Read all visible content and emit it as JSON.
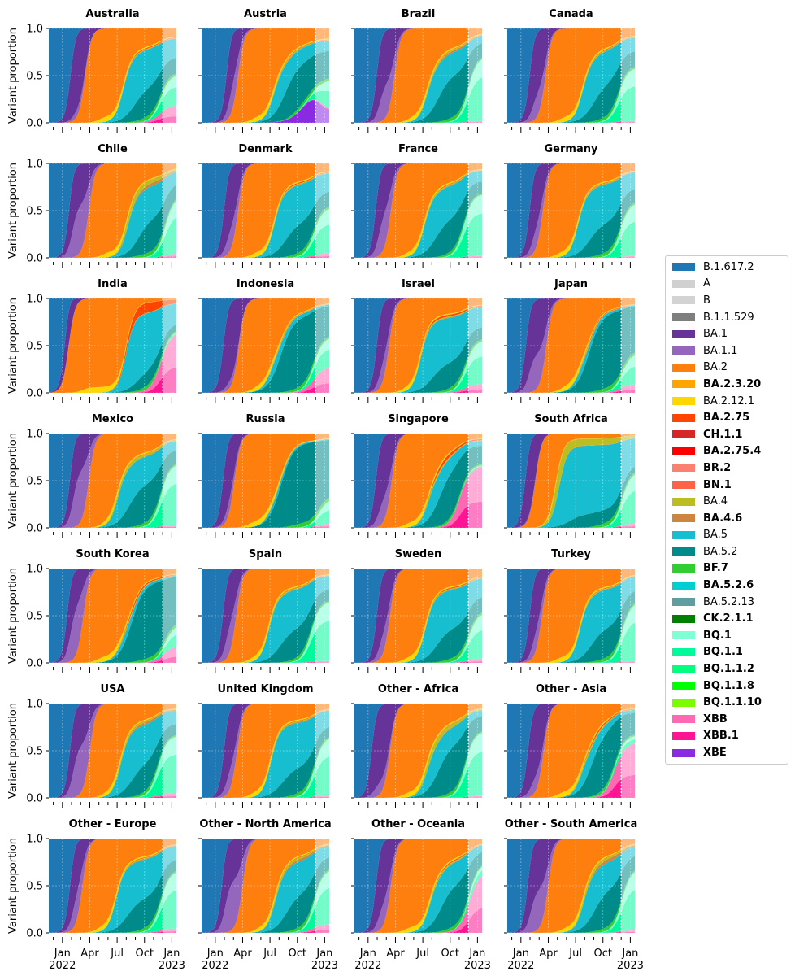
{
  "chart_data": {
    "type": "area",
    "ylabel": "Variant proportion",
    "ylim": [
      0,
      1
    ],
    "yticks": [
      0.0,
      0.5,
      1.0
    ],
    "ytick_labels": [
      "0.0",
      "0.5",
      "1.0"
    ],
    "xtick_labels": [
      "Jan\n2022",
      "Apr",
      "Jul",
      "Oct",
      "Jan\n2023"
    ],
    "grid": true,
    "legend_position": "right",
    "series": [
      {
        "name": "B.1.617.2",
        "color": "#1f77b4",
        "bold": false
      },
      {
        "name": "A",
        "color": "#d0d0d0",
        "bold": false
      },
      {
        "name": "B",
        "color": "#d3d3d3",
        "bold": false
      },
      {
        "name": "B.1.1.529",
        "color": "#7f7f7f",
        "bold": false
      },
      {
        "name": "BA.1",
        "color": "#663399",
        "bold": false
      },
      {
        "name": "BA.1.1",
        "color": "#9467bd",
        "bold": false
      },
      {
        "name": "BA.2",
        "color": "#ff7f0e",
        "bold": false
      },
      {
        "name": "BA.2.3.20",
        "color": "#ffa500",
        "bold": true
      },
      {
        "name": "BA.2.12.1",
        "color": "#ffd700",
        "bold": false
      },
      {
        "name": "BA.2.75",
        "color": "#ff4500",
        "bold": true
      },
      {
        "name": "CH.1.1",
        "color": "#d62728",
        "bold": true
      },
      {
        "name": "BA.2.75.4",
        "color": "#ff0000",
        "bold": true
      },
      {
        "name": "BR.2",
        "color": "#fa8072",
        "bold": true
      },
      {
        "name": "BN.1",
        "color": "#ff6347",
        "bold": true
      },
      {
        "name": "BA.4",
        "color": "#bcbd22",
        "bold": false
      },
      {
        "name": "BA.4.6",
        "color": "#cd853f",
        "bold": true
      },
      {
        "name": "BA.5",
        "color": "#17becf",
        "bold": false
      },
      {
        "name": "BA.5.2",
        "color": "#008b8b",
        "bold": false
      },
      {
        "name": "BF.7",
        "color": "#32cd32",
        "bold": true
      },
      {
        "name": "BA.5.2.6",
        "color": "#00ced1",
        "bold": true
      },
      {
        "name": "BA.5.2.13",
        "color": "#5f9ea0",
        "bold": false
      },
      {
        "name": "CK.2.1.1",
        "color": "#008000",
        "bold": true
      },
      {
        "name": "BQ.1",
        "color": "#7fffd4",
        "bold": true
      },
      {
        "name": "BQ.1.1",
        "color": "#00fa9a",
        "bold": true
      },
      {
        "name": "BQ.1.1.2",
        "color": "#00ff7f",
        "bold": true
      },
      {
        "name": "BQ.1.1.8",
        "color": "#00ff00",
        "bold": true
      },
      {
        "name": "BQ.1.1.10",
        "color": "#7cfc00",
        "bold": true
      },
      {
        "name": "XBB",
        "color": "#ff69b4",
        "bold": true
      },
      {
        "name": "XBB.1",
        "color": "#ff1493",
        "bold": true
      },
      {
        "name": "XBE",
        "color": "#8a2be2",
        "bold": true
      }
    ],
    "panels": [
      {
        "title": "Australia",
        "ba1": 0.9,
        "ba11": 0.1,
        "ba2": 2.5,
        "ba5": 6.7,
        "ba52": 0.35,
        "ba4": 0.03,
        "ba46": 0.03,
        "ba275": 0.05,
        "bq1": 0.45,
        "xbb": 0.2,
        "bq_start": 10.3
      },
      {
        "title": "Austria",
        "ba1": 1.3,
        "ba11": 0.4,
        "ba2": 2.5,
        "ba5": 6.4,
        "ba52": 0.55,
        "ba4": 0.05,
        "ba46": 0.03,
        "ba275": 0.03,
        "bq1": 0.4,
        "xbb": 0.03,
        "xbe": 0.33,
        "bq_start": 10.6
      },
      {
        "title": "Brazil",
        "ba1": 1.0,
        "ba11": 0.4,
        "ba2": 2.9,
        "ba5": 6.5,
        "ba52": 0.5,
        "ba4": 0.06,
        "ba46": 0.08,
        "ba275": 0.02,
        "bq1": 0.9,
        "xbb": 0.02,
        "bq_start": 10.5
      },
      {
        "title": "Canada",
        "ba1": 1.0,
        "ba11": 0.3,
        "ba2": 2.7,
        "ba5": 6.8,
        "ba52": 0.4,
        "ba4": 0.04,
        "ba46": 0.03,
        "ba275": 0.03,
        "bq1": 0.7,
        "xbb": 0.02,
        "bq_start": 10.2
      },
      {
        "title": "Chile",
        "ba1": 0.8,
        "ba11": 0.55,
        "ba2": 2.9,
        "ba5": 7.2,
        "ba52": 0.4,
        "ba4": 0.18,
        "ba46": 0.15,
        "ba275": 0.02,
        "bq1": 0.8,
        "xbb": 0.05,
        "bq_start": 10.8
      },
      {
        "title": "Denmark",
        "ba1": 1.0,
        "ba11": 0.3,
        "ba2": 2.5,
        "ba5": 6.5,
        "ba52": 0.35,
        "ba4": 0.04,
        "ba46": 0.03,
        "ba275": 0.05,
        "bq1": 0.6,
        "xbb": 0.05,
        "bq_start": 10.3
      },
      {
        "title": "France",
        "ba1": 0.9,
        "ba11": 0.45,
        "ba2": 2.5,
        "ba5": 6.2,
        "ba52": 0.4,
        "ba4": 0.05,
        "ba46": 0.03,
        "ba275": 0.03,
        "bq1": 0.85,
        "xbb": 0.02,
        "bq_start": 10.0
      },
      {
        "title": "Germany",
        "ba1": 1.0,
        "ba11": 0.3,
        "ba2": 2.4,
        "ba5": 6.3,
        "ba52": 0.35,
        "ba4": 0.04,
        "ba46": 0.03,
        "ba275": 0.03,
        "bq1": 0.7,
        "xbb": 0.02,
        "bq_start": 10.4
      },
      {
        "title": "India",
        "ba1": 0.4,
        "ba11": 0.05,
        "ba2": 0.7,
        "ba5": 7.0,
        "ba52": 0.2,
        "ba4": 0.02,
        "ba46": 0.02,
        "ba275": 0.75,
        "bq1": 0.05,
        "xbb": 0.8,
        "bq_start": 10.5
      },
      {
        "title": "Indonesia",
        "ba1": 0.9,
        "ba11": 0.1,
        "ba2": 2.6,
        "ba5": 6.0,
        "ba52": 0.8,
        "ba4": 0.03,
        "ba46": 0.02,
        "ba275": 0.03,
        "bq1": 0.5,
        "xbb": 0.3,
        "bq_start": 10.4
      },
      {
        "title": "Israel",
        "ba1": 1.0,
        "ba11": 0.3,
        "ba2": 2.3,
        "ba5": 5.8,
        "ba52": 0.3,
        "ba4": 0.05,
        "ba46": 0.03,
        "ba275": 0.1,
        "bq1": 0.6,
        "xbb": 0.1,
        "bq_start": 10.2
      },
      {
        "title": "Japan",
        "ba1": 0.6,
        "ba11": 0.4,
        "ba2": 2.8,
        "ba5": 6.3,
        "ba52": 0.85,
        "ba4": 0.03,
        "ba46": 0.02,
        "ba275": 0.05,
        "bq1": 0.4,
        "xbb": 0.1,
        "bq_start": 10.6
      },
      {
        "title": "Mexico",
        "ba1": 0.9,
        "ba11": 0.6,
        "ba2": 2.9,
        "ba5": 6.1,
        "ba52": 0.45,
        "ba4": 0.1,
        "ba46": 0.03,
        "ba275": 0.02,
        "bq1": 0.85,
        "xbb": 0.03,
        "bq_start": 10.3
      },
      {
        "title": "Russia",
        "ba1": 0.9,
        "ba11": 0.2,
        "ba2": 2.1,
        "ba5": 6.0,
        "ba52": 0.9,
        "ba4": 0.02,
        "ba46": 0.02,
        "ba275": 0.02,
        "bq1": 0.3,
        "xbb": 0.05,
        "bq_start": 10.8
      },
      {
        "title": "Singapore",
        "ba1": 0.9,
        "ba11": 0.3,
        "ba2": 2.6,
        "ba5": 6.6,
        "ba52": 0.6,
        "ba4": 0.05,
        "ba46": 0.03,
        "ba275": 0.15,
        "bq1": 0.05,
        "xbb": 0.8,
        "bq_start": 9.8
      },
      {
        "title": "South Africa",
        "ba1": 0.5,
        "ba11": 0.05,
        "ba2": 1.6,
        "ba5": 4.2,
        "ba52": 0.15,
        "ba4": 0.55,
        "ba46": 0.03,
        "ba275": 0.02,
        "bq1": 0.7,
        "xbb": 0.05,
        "bq_start": 10.6
      },
      {
        "title": "South Korea",
        "ba1": 0.6,
        "ba11": 0.6,
        "ba2": 2.3,
        "ba5": 6.4,
        "ba52": 0.85,
        "ba4": 0.03,
        "ba46": 0.03,
        "ba275": 0.1,
        "bq1": 0.3,
        "xbb": 0.2,
        "bq_start": 10.8
      },
      {
        "title": "Spain",
        "ba1": 0.9,
        "ba11": 0.4,
        "ba2": 2.3,
        "ba5": 5.9,
        "ba52": 0.35,
        "ba4": 0.05,
        "ba46": 0.03,
        "ba275": 0.03,
        "bq1": 0.8,
        "xbb": 0.02,
        "bq_start": 10.0
      },
      {
        "title": "Sweden",
        "ba1": 1.0,
        "ba11": 0.3,
        "ba2": 2.4,
        "ba5": 6.3,
        "ba52": 0.35,
        "ba4": 0.04,
        "ba46": 0.03,
        "ba275": 0.05,
        "bq1": 0.6,
        "xbb": 0.05,
        "bq_start": 10.5
      },
      {
        "title": "Turkey",
        "ba1": 1.0,
        "ba11": 0.3,
        "ba2": 2.3,
        "ba5": 6.5,
        "ba52": 0.35,
        "ba4": 0.04,
        "ba46": 0.03,
        "ba275": 0.03,
        "bq1": 0.8,
        "xbb": 0.02,
        "bq_start": 10.6
      },
      {
        "title": "USA",
        "ba1": 0.9,
        "ba11": 0.55,
        "ba2": 3.0,
        "ba5": 6.4,
        "ba52": 0.35,
        "ba4": 0.08,
        "ba46": 0.12,
        "ba275": 0.02,
        "bq1": 0.8,
        "xbb": 0.05,
        "bq_start": 10.0
      },
      {
        "title": "United Kingdom",
        "ba1": 1.0,
        "ba11": 0.3,
        "ba2": 2.4,
        "ba5": 6.1,
        "ba52": 0.3,
        "ba4": 0.05,
        "ba46": 0.05,
        "ba275": 0.03,
        "bq1": 0.8,
        "xbb": 0.03,
        "bq_start": 10.4
      },
      {
        "title": "Other - Africa",
        "ba1": 0.4,
        "ba11": 0.15,
        "ba2": 2.4,
        "ba5": 6.5,
        "ba52": 0.55,
        "ba4": 0.15,
        "ba46": 0.03,
        "ba275": 0.02,
        "bq1": 0.9,
        "xbb": 0.02,
        "bq_start": 10.2
      },
      {
        "title": "Other - Asia",
        "ba1": 0.8,
        "ba11": 0.2,
        "ba2": 2.5,
        "ba5": 6.6,
        "ba52": 0.7,
        "ba4": 0.05,
        "ba46": 0.03,
        "ba275": 0.08,
        "bq1": 0.2,
        "xbb": 0.7,
        "bq_start": 10.0
      },
      {
        "title": "Other - Europe",
        "ba1": 0.9,
        "ba11": 0.4,
        "ba2": 2.2,
        "ba5": 5.9,
        "ba52": 0.35,
        "ba4": 0.04,
        "ba46": 0.04,
        "ba275": 0.03,
        "bq1": 0.8,
        "xbb": 0.05,
        "bq_start": 10.3
      },
      {
        "title": "Other - North America",
        "ba1": 0.8,
        "ba11": 0.55,
        "ba2": 3.0,
        "ba5": 6.6,
        "ba52": 0.4,
        "ba4": 0.08,
        "ba46": 0.12,
        "ba275": 0.03,
        "bq1": 0.8,
        "xbb": 0.1,
        "bq_start": 10.4
      },
      {
        "title": "Other - Oceania",
        "ba1": 0.9,
        "ba11": 0.3,
        "ba2": 2.5,
        "ba5": 6.8,
        "ba52": 0.5,
        "ba4": 0.05,
        "ba46": 0.03,
        "ba275": 0.05,
        "bq1": 0.3,
        "xbb": 0.8,
        "bq_start": 10.8
      },
      {
        "title": "Other - South America",
        "ba1": 0.8,
        "ba11": 0.45,
        "ba2": 3.0,
        "ba5": 6.9,
        "ba52": 0.45,
        "ba4": 0.1,
        "ba46": 0.15,
        "ba275": 0.02,
        "bq1": 0.85,
        "xbb": 0.03,
        "bq_start": 10.6
      }
    ]
  }
}
